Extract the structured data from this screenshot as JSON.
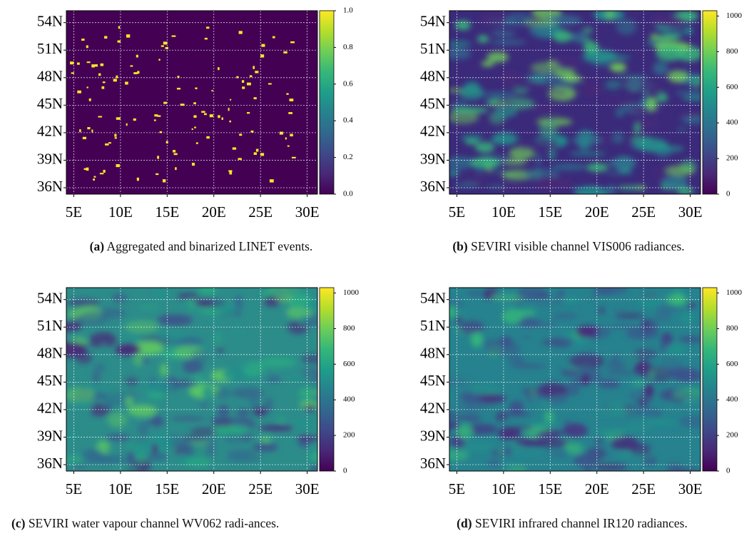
{
  "chart_data": [
    {
      "type": "map",
      "label": "(a)",
      "caption": "Aggregated and binarized LINET events.",
      "xlim": [
        4.2,
        31.1
      ],
      "ylim": [
        35.3,
        55.3
      ],
      "xticks": [
        {
          "value": 5,
          "label": "5E"
        },
        {
          "value": 10,
          "label": "10E"
        },
        {
          "value": 15,
          "label": "15E"
        },
        {
          "value": 20,
          "label": "20E"
        },
        {
          "value": 25,
          "label": "25E"
        },
        {
          "value": 30,
          "label": "30E"
        }
      ],
      "yticks": [
        {
          "value": 36,
          "label": "36N"
        },
        {
          "value": 39,
          "label": "39N"
        },
        {
          "value": 42,
          "label": "42N"
        },
        {
          "value": 45,
          "label": "45N"
        },
        {
          "value": 48,
          "label": "48N"
        },
        {
          "value": 51,
          "label": "51N"
        },
        {
          "value": 54,
          "label": "54N"
        }
      ],
      "clim": [
        0,
        1
      ],
      "cticks": [
        {
          "value": 0,
          "label": "0.0"
        },
        0.2,
        0.4,
        0.6,
        0.8,
        {
          "value": 1,
          "label": "1.0"
        }
      ],
      "grid": true
    },
    {
      "type": "map",
      "label": "(b)",
      "caption": "SEVIRI visible channel VIS006 radiances.",
      "xlim": [
        4.2,
        31.1
      ],
      "ylim": [
        35.3,
        55.3
      ],
      "xticks": [
        {
          "value": 5,
          "label": "5E"
        },
        {
          "value": 10,
          "label": "10E"
        },
        {
          "value": 15,
          "label": "15E"
        },
        {
          "value": 20,
          "label": "20E"
        },
        {
          "value": 25,
          "label": "25E"
        },
        {
          "value": 30,
          "label": "30E"
        }
      ],
      "yticks": [
        {
          "value": 36,
          "label": "36N"
        },
        {
          "value": 39,
          "label": "39N"
        },
        {
          "value": 42,
          "label": "42N"
        },
        {
          "value": 45,
          "label": "45N"
        },
        {
          "value": 48,
          "label": "48N"
        },
        {
          "value": 51,
          "label": "51N"
        },
        {
          "value": 54,
          "label": "54N"
        }
      ],
      "clim": [
        0,
        1030
      ],
      "cticks": [
        0,
        200,
        400,
        600,
        800,
        1000
      ],
      "grid": true
    },
    {
      "type": "map",
      "label": "(c)",
      "caption": "SEVIRI water vapour channel WV062 radi-ances.",
      "xlim": [
        4.2,
        31.1
      ],
      "ylim": [
        35.3,
        55.3
      ],
      "xticks": [
        {
          "value": 5,
          "label": "5E"
        },
        {
          "value": 10,
          "label": "10E"
        },
        {
          "value": 15,
          "label": "15E"
        },
        {
          "value": 20,
          "label": "20E"
        },
        {
          "value": 25,
          "label": "25E"
        },
        {
          "value": 30,
          "label": "30E"
        }
      ],
      "yticks": [
        {
          "value": 36,
          "label": "36N"
        },
        {
          "value": 39,
          "label": "39N"
        },
        {
          "value": 42,
          "label": "42N"
        },
        {
          "value": 45,
          "label": "45N"
        },
        {
          "value": 48,
          "label": "48N"
        },
        {
          "value": 51,
          "label": "51N"
        },
        {
          "value": 54,
          "label": "54N"
        }
      ],
      "clim": [
        0,
        1030
      ],
      "cticks": [
        0,
        200,
        400,
        600,
        800,
        1000
      ],
      "grid": true
    },
    {
      "type": "map",
      "label": "(d)",
      "caption": "SEVIRI infrared channel IR120 radiances.",
      "xlim": [
        4.2,
        31.1
      ],
      "ylim": [
        35.3,
        55.3
      ],
      "xticks": [
        {
          "value": 5,
          "label": "5E"
        },
        {
          "value": 10,
          "label": "10E"
        },
        {
          "value": 15,
          "label": "15E"
        },
        {
          "value": 20,
          "label": "20E"
        },
        {
          "value": 25,
          "label": "25E"
        },
        {
          "value": 30,
          "label": "30E"
        }
      ],
      "yticks": [
        {
          "value": 36,
          "label": "36N"
        },
        {
          "value": 39,
          "label": "39N"
        },
        {
          "value": 42,
          "label": "42N"
        },
        {
          "value": 45,
          "label": "45N"
        },
        {
          "value": 48,
          "label": "48N"
        },
        {
          "value": 51,
          "label": "51N"
        },
        {
          "value": 54,
          "label": "54N"
        }
      ],
      "clim": [
        0,
        1030
      ],
      "cticks": [
        0,
        200,
        400,
        600,
        800,
        1000
      ],
      "grid": true
    }
  ]
}
